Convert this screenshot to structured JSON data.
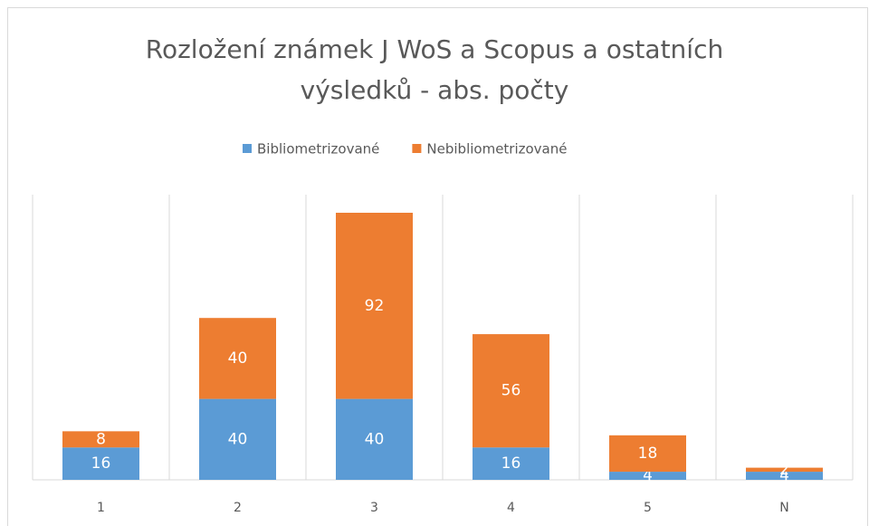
{
  "chart_data": {
    "type": "stacked_bar",
    "title": [
      "Rozložení známek J WoS a Scopus a ostatních",
      "výsledků - abs. počty"
    ],
    "categories": [
      "1",
      "2",
      "3",
      "4",
      "5",
      "N"
    ],
    "series": [
      {
        "name": "Bibliometrizované",
        "color": "#5b9bd5",
        "values": [
          16,
          40,
          40,
          16,
          4,
          4
        ]
      },
      {
        "name": "Nebibliometrizované",
        "color": "#ed7d31",
        "values": [
          8,
          40,
          92,
          56,
          18,
          2
        ]
      }
    ],
    "legend": "top"
  }
}
